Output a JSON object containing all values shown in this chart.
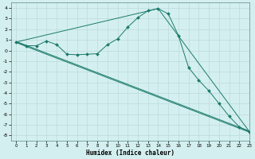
{
  "xlabel": "Humidex (Indice chaleur)",
  "background_color": "#d4efef",
  "grid_color": "#c0dede",
  "line_color": "#1a7a6a",
  "xlim": [
    -0.5,
    23
  ],
  "ylim": [
    -8.5,
    4.5
  ],
  "yticks": [
    -8,
    -7,
    -6,
    -5,
    -4,
    -3,
    -2,
    -1,
    0,
    1,
    2,
    3,
    4
  ],
  "xticks": [
    0,
    1,
    2,
    3,
    4,
    5,
    6,
    7,
    8,
    9,
    10,
    11,
    12,
    13,
    14,
    15,
    16,
    17,
    18,
    19,
    20,
    21,
    22,
    23
  ],
  "main_x": [
    0,
    1,
    2,
    3,
    4,
    5,
    6,
    7,
    8,
    9,
    10,
    11,
    12,
    13,
    14,
    15,
    16,
    17,
    18,
    19,
    20,
    21,
    22,
    23
  ],
  "main_y": [
    0.8,
    0.45,
    0.45,
    0.9,
    0.55,
    -0.35,
    -0.4,
    -0.35,
    -0.3,
    0.55,
    1.1,
    2.2,
    3.1,
    3.75,
    3.95,
    3.45,
    1.4,
    -1.6,
    -2.8,
    -3.8,
    -5.0,
    -6.2,
    -7.2,
    -7.65
  ],
  "line1_x": [
    0,
    23
  ],
  "line1_y": [
    0.8,
    -7.65
  ],
  "line2_x": [
    0,
    23
  ],
  "line2_y": [
    0.8,
    -7.65
  ],
  "line3_x": [
    0,
    14,
    23
  ],
  "line3_y": [
    0.8,
    3.95,
    -7.65
  ]
}
